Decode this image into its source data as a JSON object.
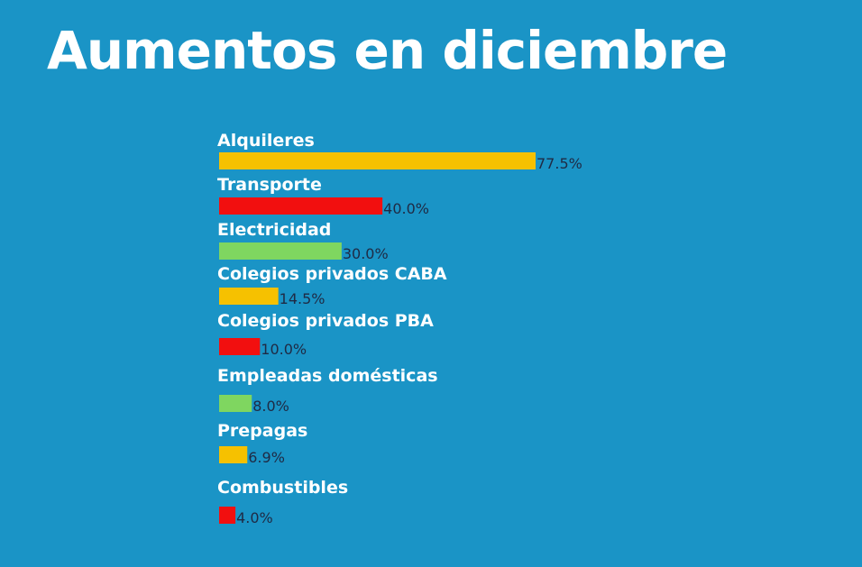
{
  "colors": {
    "background": "#1a94c6",
    "yellow": "#f6c100",
    "red": "#f20f0f",
    "green": "#7fd660"
  },
  "chart_data": {
    "type": "bar",
    "orientation": "horizontal",
    "title": "Aumentos en diciembre",
    "categories": [
      "Alquileres",
      "Transporte",
      "Electricidad",
      "Colegios privados CABA",
      "Colegios privados PBA",
      "Empleadas domésticas",
      "Prepagas",
      "Combustibles"
    ],
    "values": [
      77.5,
      40.0,
      30.0,
      14.5,
      10.0,
      8.0,
      6.9,
      4.0
    ],
    "value_labels": [
      "77.5%",
      "40.0%",
      "30.0%",
      "14.5%",
      "10.0%",
      "8.0%",
      "6.9%",
      "4.0%"
    ],
    "bar_colors": [
      "#f6c100",
      "#f20f0f",
      "#7fd660",
      "#f6c100",
      "#f20f0f",
      "#7fd660",
      "#f6c100",
      "#f20f0f"
    ],
    "unit": "%",
    "xlim": [
      0,
      77.5
    ],
    "grid": false,
    "legend": "none"
  }
}
